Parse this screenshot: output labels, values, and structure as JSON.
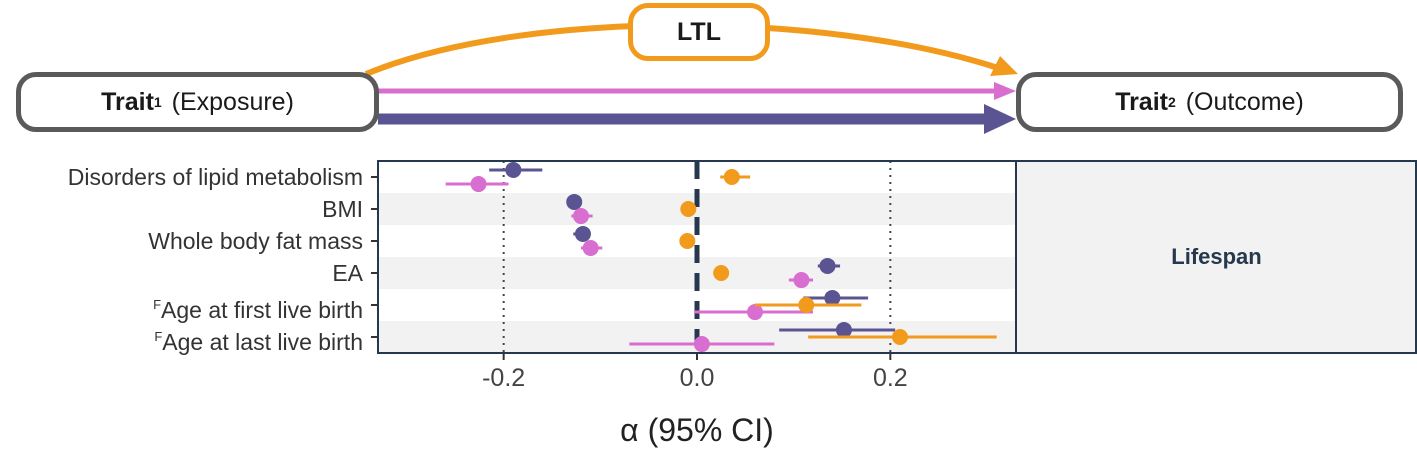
{
  "diagram": {
    "mediator_label": "LTL",
    "exposure": {
      "bold": "Trait",
      "sub": "1",
      "rest": " (Exposure)"
    },
    "outcome": {
      "bold": "Trait",
      "sub": "2",
      "rest": " (Outcome)"
    },
    "colors": {
      "ltl": "#f29a1c",
      "pink": "#d86fd0",
      "purple": "#5b5493",
      "box_border": "#5a5a5a"
    }
  },
  "chart_data": {
    "type": "scatter",
    "title": "",
    "xlabel": "α (95% CI)",
    "ylabel": "",
    "facet_label": "Lifespan",
    "xlim": [
      -0.33,
      0.33
    ],
    "xticks": [
      -0.2,
      0.0,
      0.2
    ],
    "xtick_labels": [
      "-0.2",
      "0.0",
      "0.2"
    ],
    "reference_lines": {
      "dashed_bold": 0.0,
      "dotted": [
        -0.2,
        0.2
      ]
    },
    "categories": [
      {
        "prefix": "",
        "name": "Disorders of lipid metabolism"
      },
      {
        "prefix": "",
        "name": "BMI"
      },
      {
        "prefix": "",
        "name": "Whole body fat mass"
      },
      {
        "prefix": "",
        "name": "EA"
      },
      {
        "prefix": "F",
        "name": "Age at first live birth"
      },
      {
        "prefix": "F",
        "name": "Age at last live birth"
      }
    ],
    "series": [
      {
        "color": "#5b5493",
        "offset": -0.22,
        "estimates": [
          -0.19,
          -0.127,
          -0.118,
          0.135,
          0.14,
          0.152
        ],
        "ci_low": [
          -0.215,
          -0.135,
          -0.128,
          0.125,
          0.11,
          0.085
        ],
        "ci_high": [
          -0.16,
          -0.12,
          -0.11,
          0.148,
          0.177,
          0.205
        ]
      },
      {
        "color": "#d86fd0",
        "offset": 0.22,
        "estimates": [
          -0.226,
          -0.12,
          -0.11,
          0.108,
          0.06,
          0.005
        ],
        "ci_low": [
          -0.26,
          -0.13,
          -0.12,
          0.095,
          -0.003,
          -0.07
        ],
        "ci_high": [
          -0.195,
          -0.108,
          -0.098,
          0.12,
          0.12,
          0.08
        ]
      },
      {
        "color": "#f29a1c",
        "offset": 0.0,
        "estimates": [
          0.036,
          -0.009,
          -0.01,
          0.025,
          0.113,
          0.21
        ],
        "ci_low": [
          0.024,
          -0.009,
          -0.01,
          0.025,
          0.06,
          0.115
        ],
        "ci_high": [
          0.055,
          -0.009,
          -0.01,
          0.025,
          0.17,
          0.31
        ]
      }
    ]
  }
}
